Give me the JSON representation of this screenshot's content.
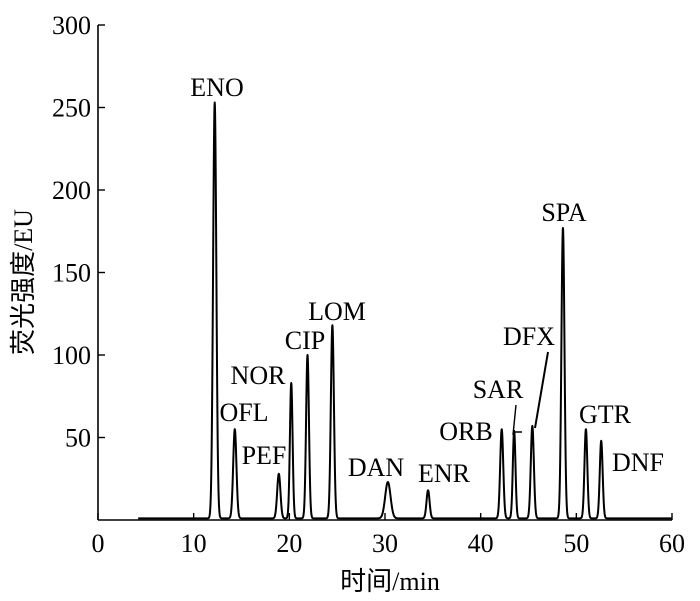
{
  "chart_data": {
    "type": "line",
    "title": "",
    "xlabel": "时间/min",
    "ylabel": "荧光强度/EU",
    "xlim": [
      0,
      60
    ],
    "ylim": [
      0,
      300
    ],
    "x_ticks": [
      0,
      10,
      20,
      30,
      40,
      50,
      60
    ],
    "y_ticks": [
      50,
      100,
      150,
      200,
      250,
      300
    ],
    "x_tick_labels": [
      "0",
      "10",
      "20",
      "30",
      "40",
      "50",
      "60"
    ],
    "y_tick_labels": [
      "50",
      "100",
      "150",
      "200",
      "250",
      "300"
    ],
    "grid": false,
    "baseline": 1,
    "series": [
      {
        "name": "",
        "color": "#000000",
        "start_x": 4.2,
        "end_x": 60,
        "peaks": [
          {
            "x": 12.2,
            "y": 253,
            "label": "ENO"
          },
          {
            "x": 14.3,
            "y": 55,
            "label": "OFL"
          },
          {
            "x": 18.9,
            "y": 28,
            "label": "PEF"
          },
          {
            "x": 20.2,
            "y": 83,
            "label": "NOR"
          },
          {
            "x": 21.9,
            "y": 100,
            "label": "CIP"
          },
          {
            "x": 24.5,
            "y": 118,
            "label": "LOM"
          },
          {
            "x": 30.3,
            "y": 23,
            "label": "DAN"
          },
          {
            "x": 34.5,
            "y": 18,
            "label": "ENR"
          },
          {
            "x": 42.2,
            "y": 55,
            "label": "ORB"
          },
          {
            "x": 43.5,
            "y": 54,
            "label": "SAR"
          },
          {
            "x": 45.4,
            "y": 57,
            "label": "DFX"
          },
          {
            "x": 48.6,
            "y": 177,
            "label": "SPA"
          },
          {
            "x": 51.0,
            "y": 55,
            "label": "GTR"
          },
          {
            "x": 52.6,
            "y": 48,
            "label": "DNF"
          }
        ]
      }
    ]
  }
}
